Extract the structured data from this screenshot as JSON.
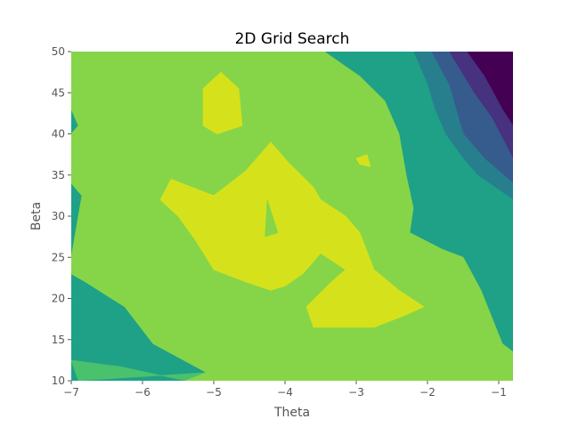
{
  "chart_data": {
    "type": "contour",
    "title": "2D Grid Search",
    "xlabel": "Theta",
    "ylabel": "Beta",
    "xlim": [
      -7,
      -0.8
    ],
    "ylim": [
      10,
      50
    ],
    "xticks": [
      -7,
      -6,
      -5,
      -4,
      -3,
      -2,
      -1
    ],
    "xtick_labels": [
      "−7",
      "−6",
      "−5",
      "−4",
      "−3",
      "−2",
      "−1"
    ],
    "yticks": [
      10,
      15,
      20,
      25,
      30,
      35,
      40,
      45,
      50
    ],
    "ytick_labels": [
      "10",
      "15",
      "20",
      "25",
      "30",
      "35",
      "40",
      "45",
      "50"
    ],
    "colormap": "viridis",
    "grid": false,
    "level_colors": [
      "#46327e",
      "#365c8d",
      "#277f8e",
      "#1fa187",
      "#4ac16d",
      "#86d549",
      "#d5e21b"
    ],
    "background_color": "#440154",
    "regions": [
      {
        "level": 1,
        "color": "#46327e",
        "polygon": [
          [
            -7,
            10
          ],
          [
            -7,
            50
          ],
          [
            -1.45,
            50
          ],
          [
            -1.2,
            47
          ],
          [
            -0.95,
            43
          ],
          [
            -0.8,
            41
          ],
          [
            -0.8,
            10
          ]
        ]
      },
      {
        "level": 2,
        "color": "#365c8d",
        "polygon": [
          [
            -7,
            10
          ],
          [
            -7,
            50
          ],
          [
            -1.7,
            50
          ],
          [
            -1.35,
            45
          ],
          [
            -1.1,
            42
          ],
          [
            -0.8,
            37
          ],
          [
            -0.8,
            10
          ]
        ]
      },
      {
        "level": 3,
        "color": "#277f8e",
        "polygon": [
          [
            -7,
            10
          ],
          [
            -7,
            50
          ],
          [
            -1.95,
            50
          ],
          [
            -1.7,
            46
          ],
          [
            -1.5,
            40
          ],
          [
            -1.2,
            37
          ],
          [
            -0.8,
            34
          ],
          [
            -0.8,
            10
          ]
        ]
      },
      {
        "level": 4,
        "color": "#1fa187",
        "polygon": [
          [
            -7,
            10
          ],
          [
            -7,
            50
          ],
          [
            -2.2,
            50
          ],
          [
            -2,
            46
          ],
          [
            -1.9,
            43
          ],
          [
            -1.75,
            40
          ],
          [
            -1.5,
            37
          ],
          [
            -1.3,
            35
          ],
          [
            -0.8,
            32
          ],
          [
            -0.8,
            10
          ]
        ]
      },
      {
        "level": 5,
        "color": "#4ac16d",
        "polygon": [
          [
            -6.9,
            10
          ],
          [
            -7,
            12.5
          ],
          [
            -6.3,
            11.7
          ],
          [
            -5.4,
            10
          ],
          [
            -0.8,
            10
          ],
          [
            -0.8,
            13.5
          ],
          [
            -0.95,
            14.5
          ],
          [
            -1.25,
            21
          ],
          [
            -1.5,
            25
          ],
          [
            -1.8,
            26
          ],
          [
            -2.25,
            28
          ],
          [
            -2.2,
            31
          ],
          [
            -2.3,
            35
          ],
          [
            -2.4,
            40
          ],
          [
            -2.6,
            44
          ],
          [
            -2.95,
            47
          ],
          [
            -3.45,
            50
          ],
          [
            -7,
            50
          ],
          [
            -7,
            43
          ],
          [
            -6.9,
            41
          ],
          [
            -7,
            40
          ],
          [
            -7,
            34
          ],
          [
            -6.85,
            32.5
          ],
          [
            -7,
            25
          ],
          [
            -7,
            23
          ],
          [
            -6.8,
            22
          ],
          [
            -6.25,
            19
          ],
          [
            -5.85,
            14.5
          ],
          [
            -5.1,
            11
          ]
        ]
      },
      {
        "level": 6,
        "color": "#86d549",
        "polygon": [
          [
            -5.4,
            10
          ],
          [
            -0.8,
            10
          ],
          [
            -0.8,
            13.5
          ],
          [
            -0.95,
            14.5
          ],
          [
            -1.25,
            21
          ],
          [
            -1.5,
            25
          ],
          [
            -1.8,
            26
          ],
          [
            -2.25,
            28
          ],
          [
            -2.2,
            31
          ],
          [
            -2.3,
            35
          ],
          [
            -2.4,
            40
          ],
          [
            -2.6,
            44
          ],
          [
            -2.95,
            47
          ],
          [
            -3.45,
            50
          ],
          [
            -7,
            50
          ],
          [
            -7,
            43
          ],
          [
            -6.9,
            41
          ],
          [
            -7,
            40
          ],
          [
            -7,
            34
          ],
          [
            -6.85,
            32.5
          ],
          [
            -7,
            25
          ],
          [
            -7,
            23
          ],
          [
            -6.8,
            22
          ],
          [
            -6.25,
            19
          ],
          [
            -5.85,
            14.5
          ],
          [
            -5.1,
            11
          ]
        ]
      },
      {
        "level": 7,
        "color": "#d5e21b",
        "polygon": [
          [
            -5.15,
            45.5
          ],
          [
            -4.9,
            47.5
          ],
          [
            -4.65,
            45.5
          ],
          [
            -4.6,
            41
          ],
          [
            -4.95,
            40
          ],
          [
            -5.15,
            41
          ]
        ]
      },
      {
        "level": 7,
        "color": "#d5e21b",
        "polygon": [
          [
            -5.75,
            32
          ],
          [
            -5.6,
            34.5
          ],
          [
            -5,
            32.5
          ],
          [
            -4.55,
            35.5
          ],
          [
            -4.3,
            38
          ],
          [
            -4.2,
            39
          ],
          [
            -3.95,
            36.5
          ],
          [
            -3.6,
            33.5
          ],
          [
            -3.5,
            32
          ],
          [
            -3.15,
            30
          ],
          [
            -2.95,
            28
          ],
          [
            -2.75,
            23.5
          ],
          [
            -2.4,
            21
          ],
          [
            -2.05,
            19
          ],
          [
            -2.3,
            18
          ],
          [
            -2.75,
            16.5
          ],
          [
            -3.2,
            16.5
          ],
          [
            -3.6,
            16.5
          ],
          [
            -3.7,
            19
          ],
          [
            -3.35,
            22
          ],
          [
            -3.15,
            23.5
          ],
          [
            -3.5,
            25.5
          ],
          [
            -3.75,
            23
          ],
          [
            -4,
            21.5
          ],
          [
            -4.2,
            21
          ],
          [
            -4.55,
            22
          ],
          [
            -5,
            23.5
          ],
          [
            -5.25,
            27
          ],
          [
            -5.5,
            30
          ]
        ]
      },
      {
        "level": 6,
        "color": "#86d549",
        "polygon": [
          [
            -4.28,
            27.5
          ],
          [
            -4.25,
            32
          ],
          [
            -4.1,
            28
          ]
        ]
      },
      {
        "level": 7,
        "color": "#d5e21b",
        "polygon": [
          [
            -3,
            37
          ],
          [
            -2.85,
            37.5
          ],
          [
            -2.8,
            36
          ],
          [
            -2.95,
            36.3
          ]
        ]
      }
    ]
  }
}
